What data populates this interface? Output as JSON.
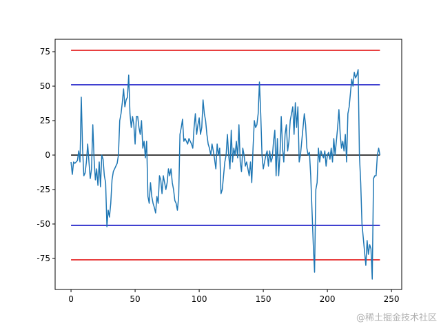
{
  "chart_data": {
    "type": "line",
    "series": [
      {
        "color": "#1f77b4",
        "values": [
          -5,
          -14,
          -5,
          -6,
          -5,
          -4,
          3,
          -5,
          42,
          5,
          -15,
          -13,
          -5,
          8,
          -5,
          -17,
          -10,
          22,
          -3,
          -18,
          -10,
          -22,
          -5,
          -23,
          0,
          -3,
          -15,
          -20,
          -52,
          -40,
          -45,
          -35,
          -18,
          -12,
          -10,
          -8,
          -6,
          0,
          25,
          30,
          38,
          48,
          35,
          40,
          42,
          58,
          30,
          20,
          28,
          22,
          8,
          28,
          28,
          20,
          15,
          25,
          5,
          10,
          -2,
          10,
          -30,
          -35,
          -20,
          -30,
          -35,
          -38,
          -42,
          -30,
          -35,
          -15,
          -18,
          -28,
          -15,
          -20,
          -25,
          -20,
          -10,
          -15,
          -10,
          -20,
          -25,
          -33,
          -35,
          -40,
          -30,
          15,
          20,
          26,
          10,
          12,
          10,
          8,
          12,
          10,
          8,
          5,
          20,
          30,
          15,
          22,
          27,
          15,
          20,
          40,
          30,
          25,
          15,
          8,
          5,
          0,
          8,
          3,
          -3,
          -10,
          8,
          0,
          5,
          -28,
          -25,
          -15,
          -5,
          0,
          15,
          0,
          -10,
          18,
          -5,
          5,
          0,
          10,
          -2,
          22,
          -5,
          -12,
          5,
          0,
          -8,
          -5,
          -10,
          -15,
          -5,
          -20,
          5,
          25,
          20,
          22,
          30,
          53,
          30,
          0,
          -10,
          -5,
          0,
          3,
          -8,
          3,
          -5,
          -2,
          10,
          18,
          -15,
          12,
          -15,
          0,
          28,
          5,
          -5,
          15,
          22,
          3,
          10,
          25,
          30,
          35,
          15,
          38,
          20,
          35,
          -5,
          0,
          10,
          20,
          30,
          22,
          5,
          0,
          2,
          -15,
          -40,
          -65,
          -85,
          -25,
          -20,
          5,
          -5,
          3,
          0,
          -2,
          3,
          -8,
          0,
          2,
          -3,
          5,
          -5,
          12,
          0,
          10,
          20,
          33,
          15,
          5,
          10,
          3,
          15,
          -5,
          30,
          35,
          45,
          55,
          50,
          60,
          56,
          58,
          62,
          0,
          -20,
          -50,
          -60,
          -70,
          -80,
          -62,
          -72,
          -65,
          -68,
          -90,
          -17,
          -15,
          -15,
          0,
          5,
          0
        ]
      }
    ],
    "hlines": [
      {
        "y": 76,
        "xmin": 0,
        "xmax": 241,
        "color": "#e00000"
      },
      {
        "y": 51,
        "xmin": 0,
        "xmax": 241,
        "color": "#0000c0"
      },
      {
        "y": 0,
        "xmin": 0,
        "xmax": 241,
        "color": "#000000"
      },
      {
        "y": -51,
        "xmin": 0,
        "xmax": 241,
        "color": "#0000c0"
      },
      {
        "y": -76,
        "xmin": 0,
        "xmax": 241,
        "color": "#e00000"
      }
    ],
    "xlim": [
      -12.4,
      258
    ],
    "xticks": [
      0,
      50,
      100,
      150,
      200,
      250
    ],
    "ylim": [
      -97.5,
      84
    ],
    "yticks": [
      -75,
      -50,
      -25,
      0,
      25,
      50,
      75
    ],
    "watermark": "@稀土掘金技术社区"
  }
}
